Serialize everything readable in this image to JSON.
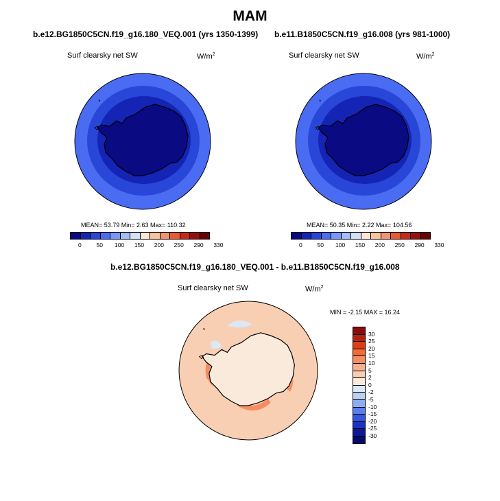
{
  "season": "MAM",
  "panels": [
    {
      "title": "b.e12.BG1850C5CN.f19_g16.180_VEQ.001 (yrs 1350-1399)",
      "variable": "Surf clearsky net SW",
      "units_base": "W/m",
      "units_exp": "2",
      "stats": "MEAN=  53.79  Min=   2.63  Max= 110.32"
    },
    {
      "title": "b.e11.B1850C5CN.f19_g16.008 (yrs 981-1000)",
      "variable": "Surf clearsky net SW",
      "units_base": "W/m",
      "units_exp": "2",
      "stats": "MEAN=  50.35  Min=   2.22  Max= 104.56"
    },
    {
      "title": "b.e12.BG1850C5CN.f19_g16.180_VEQ.001 - b.e11.B1850C5CN.f19_g16.008",
      "variable": "Surf clearsky net SW",
      "units_base": "W/m",
      "units_exp": "2",
      "stats": "MIN =  -2.15 MAX =  16.24"
    }
  ],
  "abs_colorbar": {
    "labels": [
      "0",
      "50",
      "100",
      "150",
      "200",
      "250",
      "290",
      "330"
    ],
    "colors": [
      "#0a0a82",
      "#1424b4",
      "#2846d8",
      "#4a6cf2",
      "#7898f8",
      "#a4bcf8",
      "#d2e0f8",
      "#fae6d6",
      "#f8c4a0",
      "#f09470",
      "#e85a30",
      "#c8281a",
      "#961010",
      "#6a0202"
    ]
  },
  "diff_colorbar": {
    "labels": [
      "30",
      "25",
      "20",
      "15",
      "10",
      "5",
      "2",
      "0",
      "-2",
      "-5",
      "-10",
      "-15",
      "-20",
      "-25",
      "-30"
    ],
    "colors": [
      "#8a0c0c",
      "#b8200e",
      "#e03c14",
      "#f26a34",
      "#f48e62",
      "#f6b08c",
      "#f8cfb2",
      "#faeadc",
      "#dce8f6",
      "#bcd0f4",
      "#8eacf4",
      "#5a80f0",
      "#3456e0",
      "#1a32c0",
      "#0c1894",
      "#060a6c"
    ]
  },
  "colors": {
    "ocean_outer": "#4a6cf2",
    "ocean_mid": "#2846d8",
    "ocean_inner": "#1424b4",
    "continent": "#0a0a82",
    "diff_ocean": "#f8cfb2",
    "diff_continent": "#faeadc",
    "diff_strong": "#f48e62",
    "diff_negative": "#dce8f6"
  }
}
